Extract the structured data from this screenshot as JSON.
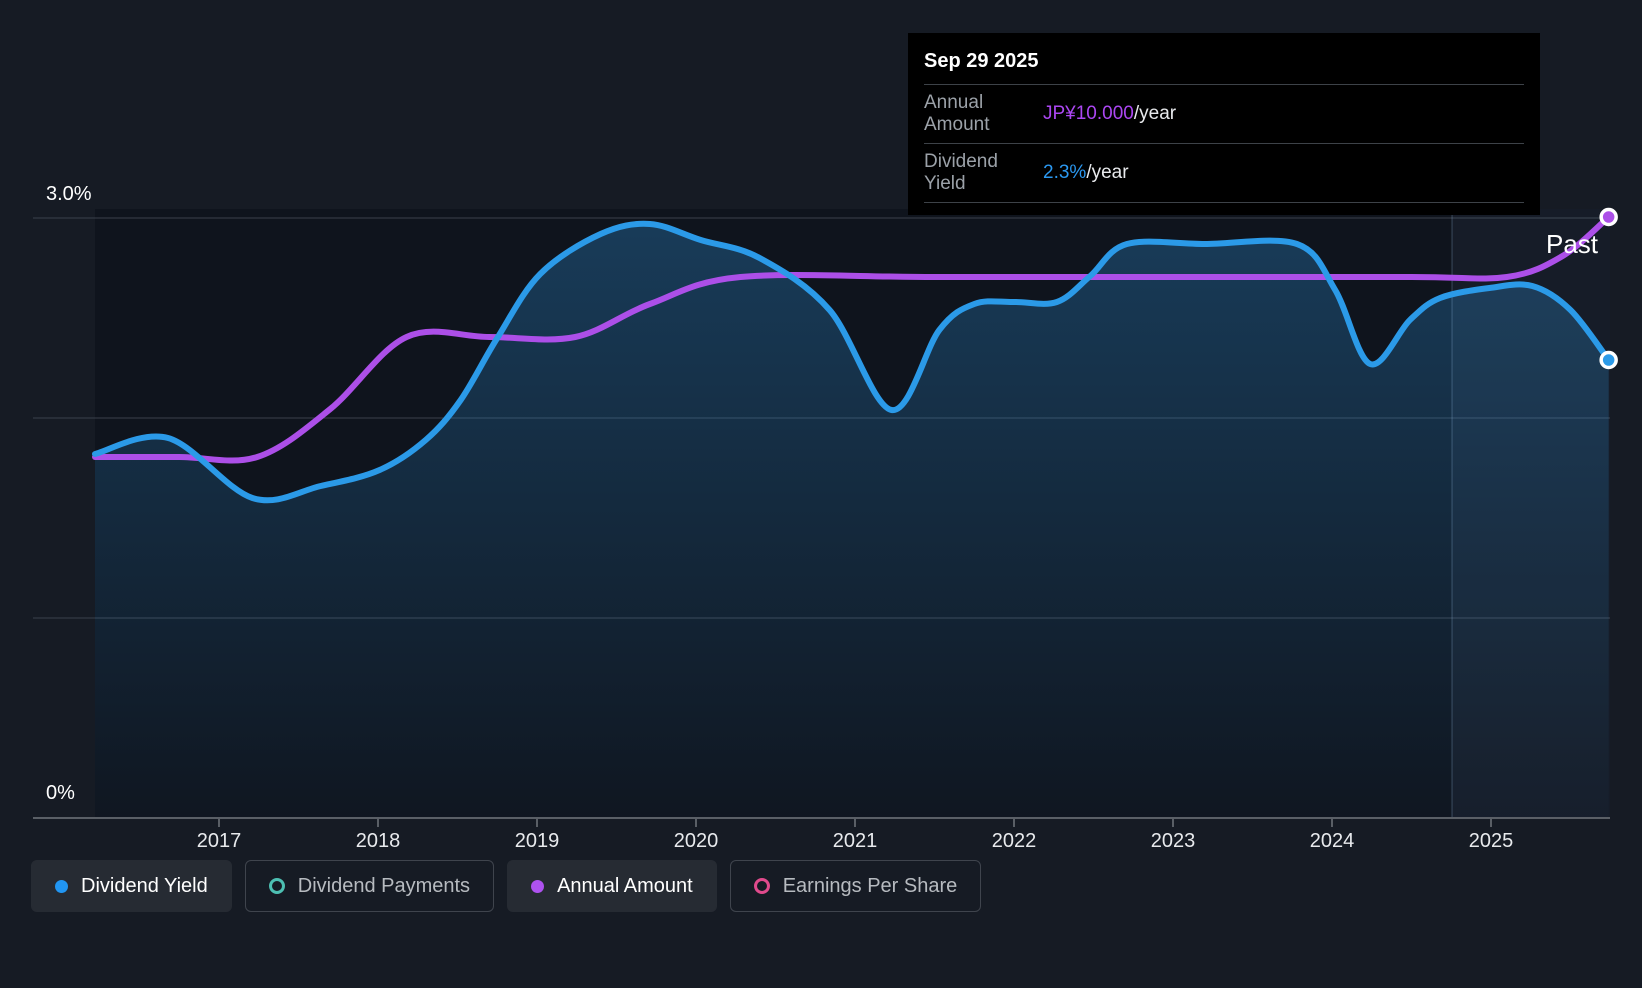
{
  "past_label": "Past",
  "tooltip": {
    "date": "Sep 29 2025",
    "rows": [
      {
        "label": "Annual Amount",
        "value": "JP¥10.000",
        "suffix": "/year",
        "color": "#AB47F2"
      },
      {
        "label": "Dividend Yield",
        "value": "2.3%",
        "suffix": "/year",
        "color": "#2B98F0"
      }
    ]
  },
  "chart_data": {
    "type": "line",
    "title": "Dividend history (dividend yield vs annual amount)",
    "x_axis": {
      "labels": [
        "2017",
        "2018",
        "2019",
        "2020",
        "2021",
        "2022",
        "2023",
        "2024",
        "2025"
      ],
      "range": [
        2016.22,
        2025.75
      ]
    },
    "y_axis": {
      "labels": [
        "3.0%",
        "0%"
      ],
      "unit": "%",
      "range": [
        0,
        3.0
      ],
      "gridlines_pct": [
        3.0,
        2.0,
        1.0
      ],
      "axis_pct": 0
    },
    "past_boundary_year": 2024.76,
    "grid": "horizontal-only",
    "legend_position": "bottom",
    "series": [
      {
        "name": "Dividend Yield",
        "unit": "%/year",
        "color": "#2B9AE8",
        "end_value": "2.3%",
        "points": [
          [
            2016.22,
            1.82
          ],
          [
            2016.68,
            1.9
          ],
          [
            2017.21,
            1.6
          ],
          [
            2017.64,
            1.66
          ],
          [
            2018.01,
            1.74
          ],
          [
            2018.3,
            1.89
          ],
          [
            2018.52,
            2.09
          ],
          [
            2018.75,
            2.4
          ],
          [
            2019.02,
            2.72
          ],
          [
            2019.4,
            2.92
          ],
          [
            2019.71,
            2.97
          ],
          [
            2020.03,
            2.89
          ],
          [
            2020.4,
            2.8
          ],
          [
            2020.84,
            2.54
          ],
          [
            2021.23,
            2.04
          ],
          [
            2021.53,
            2.44
          ],
          [
            2021.75,
            2.57
          ],
          [
            2022.0,
            2.58
          ],
          [
            2022.27,
            2.58
          ],
          [
            2022.48,
            2.71
          ],
          [
            2022.71,
            2.87
          ],
          [
            2023.2,
            2.87
          ],
          [
            2023.78,
            2.87
          ],
          [
            2024.02,
            2.64
          ],
          [
            2024.24,
            2.27
          ],
          [
            2024.49,
            2.49
          ],
          [
            2024.68,
            2.6
          ],
          [
            2024.99,
            2.65
          ],
          [
            2025.26,
            2.66
          ],
          [
            2025.5,
            2.54
          ],
          [
            2025.74,
            2.29
          ]
        ]
      },
      {
        "name": "Annual Amount",
        "unit": "JP¥/year",
        "color": "#AC4FE8",
        "end_value": "JP¥10.000",
        "points": [
          [
            2016.22,
            6.0
          ],
          [
            2016.75,
            6.0
          ],
          [
            2017.24,
            6.0
          ],
          [
            2017.7,
            6.8
          ],
          [
            2018.18,
            8.0
          ],
          [
            2018.7,
            8.0
          ],
          [
            2019.24,
            8.0
          ],
          [
            2019.71,
            8.55
          ],
          [
            2020.28,
            9.0
          ],
          [
            2021.5,
            9.0
          ],
          [
            2023.0,
            9.0
          ],
          [
            2024.5,
            9.0
          ],
          [
            2025.1,
            9.0
          ],
          [
            2025.45,
            9.35
          ],
          [
            2025.74,
            10.0
          ]
        ]
      }
    ]
  },
  "legend": {
    "items": [
      {
        "label": "Dividend Yield",
        "color": "#2196F3",
        "filled": true,
        "active": true
      },
      {
        "label": "Dividend Payments",
        "color": "#4DBFB2",
        "filled": false,
        "active": false
      },
      {
        "label": "Annual Amount",
        "color": "#AE52F0",
        "filled": true,
        "active": true
      },
      {
        "label": "Earnings Per Share",
        "color": "#E04A8C",
        "filled": false,
        "active": false
      }
    ]
  }
}
